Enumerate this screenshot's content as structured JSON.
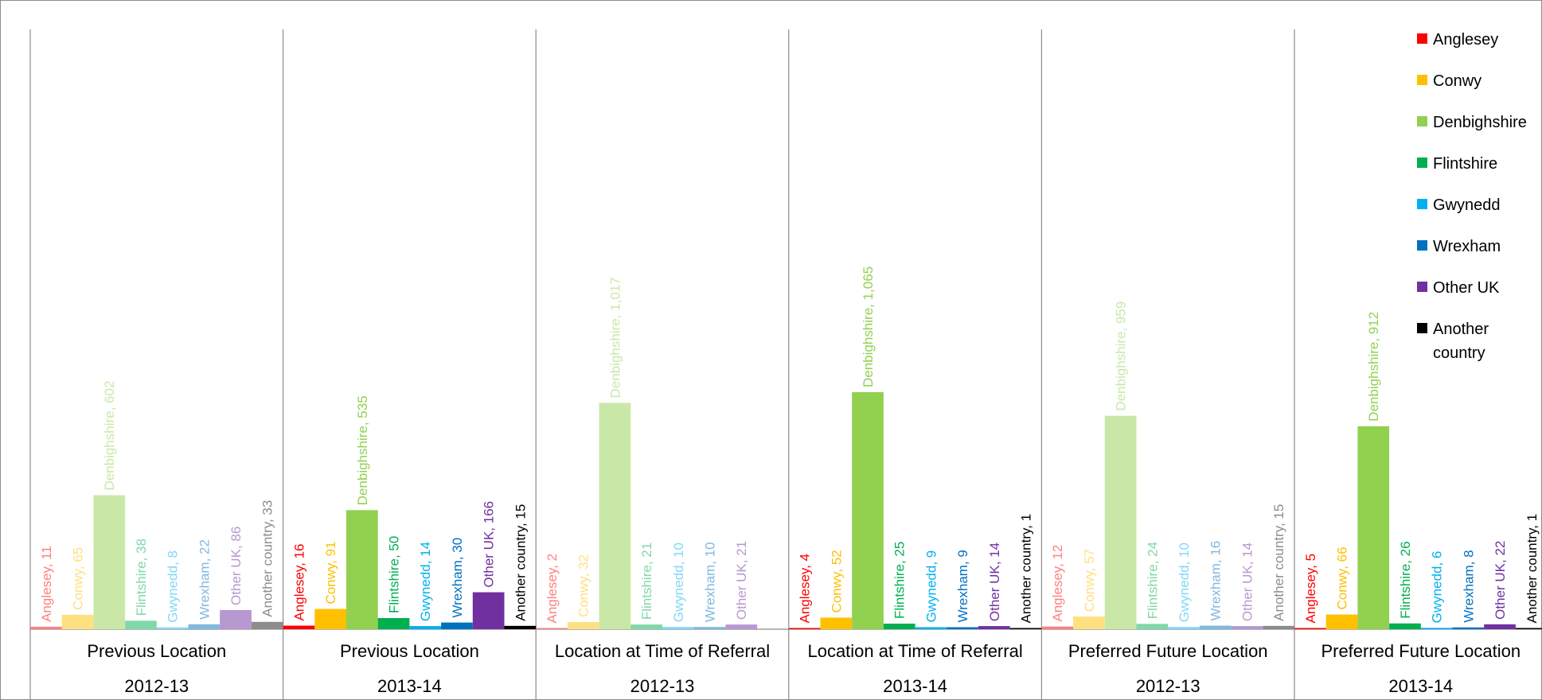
{
  "chart_data": {
    "type": "bar",
    "ylim": [
      0,
      1100
    ],
    "grid": false,
    "legend_position": "right",
    "series": [
      {
        "name": "Anglesey",
        "color": "#ff0000"
      },
      {
        "name": "Conwy",
        "color": "#ffc000"
      },
      {
        "name": "Denbighshire",
        "color": "#92d050"
      },
      {
        "name": "Flintshire",
        "color": "#00b050"
      },
      {
        "name": "Gwynedd",
        "color": "#00b0f0"
      },
      {
        "name": "Wrexham",
        "color": "#0070c0"
      },
      {
        "name": "Other UK",
        "color": "#7030a0"
      },
      {
        "name": "Another country",
        "color": "#000000"
      }
    ],
    "groups": [
      {
        "label": "Previous Location",
        "year": "2012-13",
        "faded": true,
        "values": [
          11,
          65,
          602,
          38,
          8,
          22,
          86,
          33
        ],
        "labels": [
          "Anglesey, 11",
          "Conwy, 65",
          "Denbighshire, 602",
          "Flintshire, 38",
          "Gwynedd, 8",
          "Wrexham, 22",
          "Other UK, 86",
          "Another country, 33"
        ]
      },
      {
        "label": "Previous Location",
        "year": "2013-14",
        "faded": false,
        "values": [
          16,
          91,
          535,
          50,
          14,
          30,
          166,
          15
        ],
        "labels": [
          "Anglesey, 16",
          "Conwy, 91",
          "Denbighshire, 535",
          "Flintshire, 50",
          "Gwynedd, 14",
          "Wrexham, 30",
          "Other UK, 166",
          "Another country, 15"
        ]
      },
      {
        "label": "Location at Time of Referral",
        "year": "2012-13",
        "faded": true,
        "values": [
          2,
          32,
          1017,
          21,
          10,
          10,
          21,
          0
        ],
        "labels": [
          "Anglesey, 2",
          "Conwy, 32",
          "Denbighshire, 1,017",
          "Flintshire, 21",
          "Gwynedd, 10",
          "Wrexham, 10",
          "Other UK, 21",
          ""
        ]
      },
      {
        "label": "Location at Time of Referral",
        "year": "2013-14",
        "faded": false,
        "values": [
          4,
          52,
          1065,
          25,
          9,
          9,
          14,
          1
        ],
        "labels": [
          "Anglesey, 4",
          "Conwy, 52",
          "Denbighshire, 1,065",
          "Flintshire, 25",
          "Gwynedd, 9",
          "Wrexham, 9",
          "Other UK, 14",
          "Another country, 1"
        ]
      },
      {
        "label": "Preferred Future Location",
        "year": "2012-13",
        "faded": true,
        "values": [
          12,
          57,
          959,
          24,
          10,
          16,
          14,
          15
        ],
        "labels": [
          "Anglesey, 12",
          "Conwy, 57",
          "Denbighshire, 959",
          "Flintshire, 24",
          "Gwynedd, 10",
          "Wrexham, 16",
          "Other UK, 14",
          "Another country, 15"
        ]
      },
      {
        "label": "Preferred Future Location",
        "year": "2013-14",
        "faded": false,
        "values": [
          5,
          66,
          912,
          26,
          6,
          8,
          22,
          1
        ],
        "labels": [
          "Anglesey, 5",
          "Conwy, 66",
          "Denbighshire, 912",
          "Flintshire, 26",
          "Gwynedd, 6",
          "Wrexham, 8",
          "Other UK, 22",
          "Another country, 1"
        ]
      }
    ],
    "legend": [
      "Anglesey",
      "Conwy",
      "Denbighshire",
      "Flintshire",
      "Gwynedd",
      "Wrexham",
      "Other UK",
      "Another country"
    ]
  }
}
